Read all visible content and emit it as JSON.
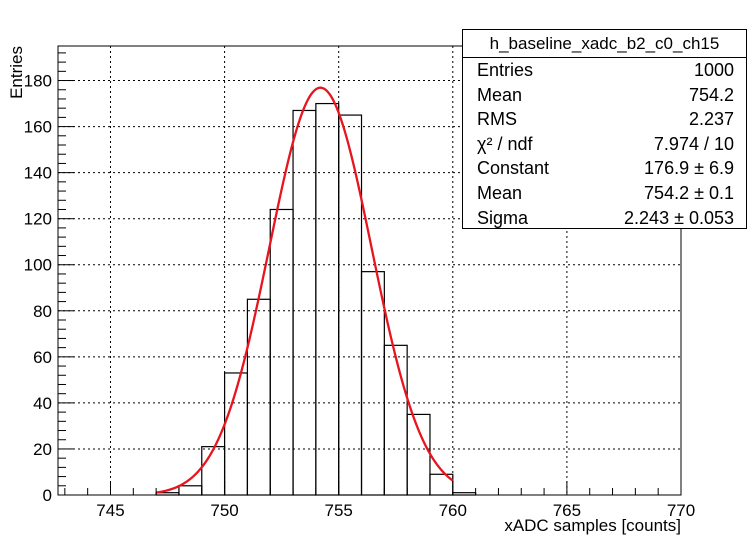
{
  "chart_data": {
    "type": "histogram",
    "xlabel": "xADC samples [counts]",
    "ylabel": "Entries",
    "xlim": [
      742.7,
      770
    ],
    "ylim": [
      0,
      195
    ],
    "xticks": [
      745,
      750,
      755,
      760,
      765,
      770
    ],
    "yticks": [
      0,
      20,
      40,
      60,
      80,
      100,
      120,
      140,
      160,
      180
    ],
    "grid": true,
    "bin_edges": [
      747,
      748,
      749,
      750,
      751,
      752,
      753,
      754,
      755,
      756,
      757,
      758,
      759,
      760,
      761
    ],
    "counts": [
      1,
      4,
      21,
      53,
      85,
      124,
      167,
      170,
      165,
      97,
      65,
      35,
      9,
      1
    ],
    "fit": {
      "function": "gaussian",
      "constant": 176.9,
      "mean": 754.2,
      "sigma": 2.243,
      "range": [
        747,
        760
      ],
      "color": "#e8141e"
    },
    "stats_box": {
      "title": "h_baseline_xadc_b2_c0_ch15",
      "rows": [
        {
          "label": "Entries",
          "value": "1000"
        },
        {
          "label": "Mean",
          "value": "754.2"
        },
        {
          "label": "RMS",
          "value": "2.237"
        },
        {
          "label": "χ² / ndf",
          "value": "7.974 / 10"
        },
        {
          "label": "Constant",
          "value": "176.9 ± 6.9"
        },
        {
          "label": "Mean",
          "value": "754.2 ± 0.1"
        },
        {
          "label": "Sigma",
          "value": "2.243 ± 0.053"
        }
      ]
    }
  }
}
